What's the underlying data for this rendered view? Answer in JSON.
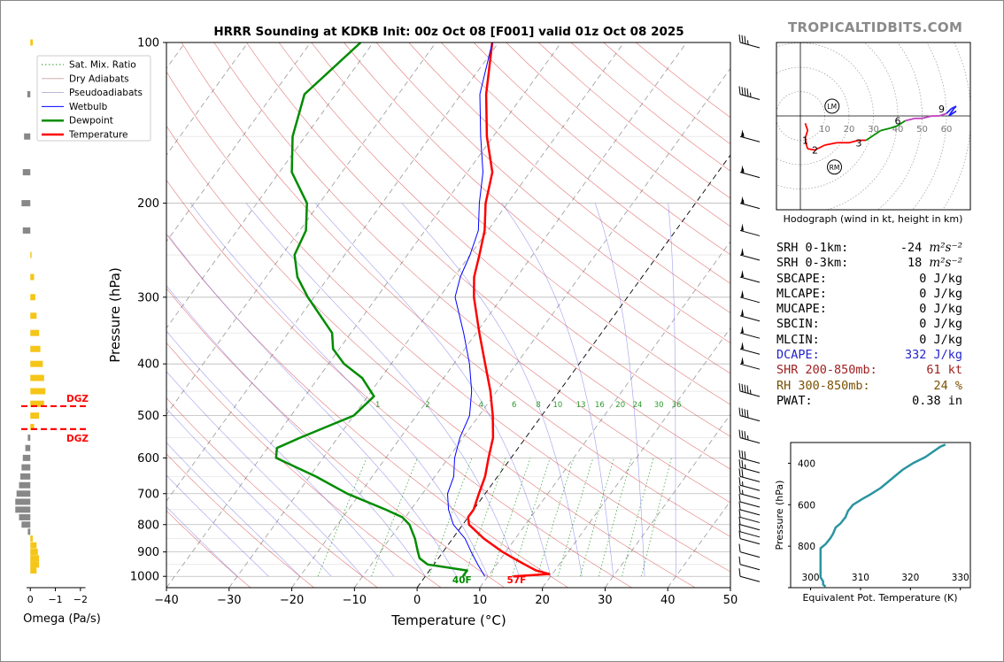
{
  "brand": "TROPICALTIDBITS.COM",
  "title": "HRRR Sounding at KDKB Init: 00z Oct 08 [F001] valid 01z Oct 08 2025",
  "colors": {
    "temperature": "#ff0000",
    "dewpoint": "#008c00",
    "wetbulb": "#0000ff",
    "dry": "#d02020",
    "moist": "#5050e0",
    "mix": "#2a9a2a",
    "theta": "#2a95a0",
    "dgz": "#ff0000",
    "omega_up": "#f5c518",
    "omega_down": "#888888"
  },
  "chart_data": [
    {
      "type": "line",
      "name": "skew-t",
      "xlabel": "Temperature (°C)",
      "ylabel": "Pressure (hPa)",
      "xlim": [
        -40,
        50
      ],
      "ylim": [
        1050,
        100
      ],
      "log_y": true,
      "xticks": [
        "−40",
        "−30",
        "−20",
        "−10",
        "0",
        "10",
        "20",
        "30",
        "40",
        "50"
      ],
      "yticks": [
        "100",
        "200",
        "300",
        "400",
        "500",
        "600",
        "700",
        "800",
        "900",
        "1000"
      ],
      "legend": [
        "Sat. Mix. Ratio",
        "Dry Adiabats",
        "Pseudoadiabats",
        "Wetbulb",
        "Dewpoint",
        "Temperature"
      ],
      "legend_position": "top-left",
      "surface_labels": {
        "temperature": "57F",
        "dewpoint": "40F"
      },
      "mixing_ratio_labels": [
        "1",
        "2",
        "4",
        "6",
        "8",
        "10",
        "13",
        "16",
        "20",
        "24",
        "30",
        "36"
      ],
      "series": [
        {
          "name": "Temperature",
          "points": [
            [
              1000,
              14
            ],
            [
              990,
              19.5
            ],
            [
              975,
              17
            ],
            [
              950,
              14.5
            ],
            [
              925,
              12
            ],
            [
              900,
              9.5
            ],
            [
              850,
              5
            ],
            [
              800,
              1
            ],
            [
              775,
              0
            ],
            [
              750,
              0
            ],
            [
              700,
              -1
            ],
            [
              650,
              -2
            ],
            [
              600,
              -3.6
            ],
            [
              550,
              -5.2
            ],
            [
              500,
              -7.8
            ],
            [
              450,
              -11
            ],
            [
              400,
              -15
            ],
            [
              350,
              -19.5
            ],
            [
              300,
              -24.5
            ],
            [
              275,
              -26.8
            ],
            [
              250,
              -28.5
            ],
            [
              225,
              -30.5
            ],
            [
              200,
              -33.5
            ],
            [
              175,
              -36
            ],
            [
              150,
              -41
            ],
            [
              125,
              -46
            ],
            [
              100,
              -51
            ]
          ]
        },
        {
          "name": "Dewpoint",
          "points": [
            [
              1000,
              6
            ],
            [
              975,
              6
            ],
            [
              950,
              -1
            ],
            [
              925,
              -3
            ],
            [
              900,
              -4
            ],
            [
              850,
              -6
            ],
            [
              800,
              -8.5
            ],
            [
              775,
              -10.5
            ],
            [
              750,
              -14
            ],
            [
              700,
              -22
            ],
            [
              650,
              -29
            ],
            [
              600,
              -37.5
            ],
            [
              575,
              -38.5
            ],
            [
              550,
              -36
            ],
            [
              500,
              -30
            ],
            [
              460,
              -29
            ],
            [
              425,
              -33
            ],
            [
              400,
              -37.5
            ],
            [
              375,
              -41
            ],
            [
              350,
              -43
            ],
            [
              300,
              -51
            ],
            [
              275,
              -55
            ],
            [
              250,
              -58
            ],
            [
              225,
              -59
            ],
            [
              200,
              -62
            ],
            [
              175,
              -68
            ],
            [
              150,
              -72
            ],
            [
              125,
              -75
            ],
            [
              100,
              -72
            ]
          ]
        },
        {
          "name": "Wetbulb",
          "points": [
            [
              1000,
              9.5
            ],
            [
              950,
              7
            ],
            [
              900,
              4.5
            ],
            [
              850,
              2
            ],
            [
              800,
              -1.5
            ],
            [
              750,
              -4
            ],
            [
              700,
              -6
            ],
            [
              650,
              -7
            ],
            [
              600,
              -9
            ],
            [
              550,
              -10.5
            ],
            [
              500,
              -11.5
            ],
            [
              450,
              -14
            ],
            [
              400,
              -17.5
            ],
            [
              350,
              -22
            ],
            [
              300,
              -27.5
            ],
            [
              275,
              -29
            ],
            [
              250,
              -30
            ],
            [
              225,
              -31.5
            ],
            [
              200,
              -34.5
            ],
            [
              175,
              -37.5
            ],
            [
              150,
              -42
            ],
            [
              125,
              -47
            ],
            [
              100,
              -51
            ]
          ]
        }
      ],
      "dgz_labels": [
        "DGZ",
        "DGZ"
      ],
      "dgz_pressures": [
        480,
        530
      ]
    },
    {
      "type": "bar",
      "name": "omega",
      "xlabel": "Omega (Pa/s)",
      "xticks": [
        "0",
        "−1",
        "−2"
      ],
      "xlim": [
        0.15,
        -2.5
      ],
      "values": [
        [
          100,
          -0.1
        ],
        [
          125,
          0.12
        ],
        [
          150,
          0.25
        ],
        [
          175,
          0.3
        ],
        [
          200,
          0.35
        ],
        [
          225,
          0.3
        ],
        [
          250,
          -0.05
        ],
        [
          275,
          -0.15
        ],
        [
          300,
          -0.2
        ],
        [
          325,
          -0.25
        ],
        [
          350,
          -0.35
        ],
        [
          375,
          -0.4
        ],
        [
          400,
          -0.5
        ],
        [
          425,
          -0.55
        ],
        [
          450,
          -0.6
        ],
        [
          475,
          -0.55
        ],
        [
          500,
          -0.35
        ],
        [
          525,
          -0.15
        ],
        [
          550,
          0.1
        ],
        [
          575,
          0.2
        ],
        [
          600,
          0.3
        ],
        [
          625,
          0.35
        ],
        [
          650,
          0.4
        ],
        [
          675,
          0.45
        ],
        [
          700,
          0.55
        ],
        [
          725,
          0.6
        ],
        [
          750,
          0.6
        ],
        [
          775,
          0.45
        ],
        [
          800,
          0.35
        ],
        [
          825,
          0.1
        ],
        [
          850,
          -0.1
        ],
        [
          875,
          -0.25
        ],
        [
          900,
          -0.3
        ],
        [
          925,
          -0.35
        ],
        [
          950,
          -0.35
        ],
        [
          975,
          -0.25
        ]
      ]
    },
    {
      "type": "line",
      "name": "hodograph",
      "xlabel": "Hodograph (wind in kt, height in km)",
      "xticks": [
        "10",
        "20",
        "30",
        "40",
        "50",
        "60"
      ],
      "height_labels": [
        "1",
        "2",
        "3",
        "6",
        "9"
      ],
      "markers": [
        "LM",
        "RM"
      ],
      "points": [
        [
          2,
          -3
        ],
        [
          3,
          -6
        ],
        [
          2,
          -9
        ],
        [
          2.5,
          -12
        ],
        [
          3,
          -13.5
        ],
        [
          6,
          -14
        ],
        [
          10,
          -12
        ],
        [
          15,
          -11
        ],
        [
          20,
          -11
        ],
        [
          24,
          -10
        ],
        [
          27,
          -10
        ],
        [
          30,
          -8
        ],
        [
          33,
          -6
        ],
        [
          37,
          -5
        ],
        [
          40,
          -4
        ],
        [
          43,
          -2
        ],
        [
          47,
          -1
        ],
        [
          50,
          -1
        ],
        [
          54,
          0
        ],
        [
          57,
          0
        ],
        [
          60,
          1
        ],
        [
          62,
          3
        ],
        [
          64,
          4
        ],
        [
          63,
          3
        ],
        [
          61,
          0
        ],
        [
          64,
          2
        ]
      ]
    },
    {
      "type": "line",
      "name": "theta-e",
      "xlabel": "Equivalent Pot. Temperature (K)",
      "ylabel": "Pressure (hPa)",
      "xticks": [
        "300",
        "310",
        "320",
        "330"
      ],
      "yticks": [
        "400",
        "600",
        "800"
      ],
      "xlim": [
        296,
        332
      ],
      "ylim": [
        1000,
        300
      ],
      "points": [
        [
          995,
          303
        ],
        [
          985,
          302.5
        ],
        [
          970,
          302.5
        ],
        [
          950,
          302
        ],
        [
          900,
          302
        ],
        [
          850,
          302
        ],
        [
          810,
          302
        ],
        [
          790,
          303
        ],
        [
          760,
          304
        ],
        [
          740,
          304.5
        ],
        [
          710,
          305
        ],
        [
          690,
          306
        ],
        [
          660,
          307
        ],
        [
          630,
          307.5
        ],
        [
          600,
          308.5
        ],
        [
          570,
          310.5
        ],
        [
          550,
          312
        ],
        [
          520,
          314
        ],
        [
          490,
          315.5
        ],
        [
          460,
          317
        ],
        [
          430,
          318.5
        ],
        [
          400,
          320.5
        ],
        [
          370,
          323
        ],
        [
          345,
          324.5
        ],
        [
          320,
          326
        ],
        [
          310,
          327
        ]
      ]
    },
    {
      "type": "table",
      "name": "indices",
      "rows": [
        {
          "label": "SRH 0-1km:",
          "value": "-24",
          "unit": "m²s⁻²",
          "color": "#000000"
        },
        {
          "label": "SRH 0-3km:",
          "value": "18",
          "unit": "m²s⁻²",
          "color": "#000000"
        },
        {
          "label": "SBCAPE:",
          "value": "0 J/kg",
          "unit": "",
          "color": "#000000"
        },
        {
          "label": "MLCAPE:",
          "value": "0 J/kg",
          "unit": "",
          "color": "#000000"
        },
        {
          "label": "MUCAPE:",
          "value": "0 J/kg",
          "unit": "",
          "color": "#000000"
        },
        {
          "label": "SBCIN:",
          "value": "0 J/kg",
          "unit": "",
          "color": "#000000"
        },
        {
          "label": "MLCIN:",
          "value": "0 J/kg",
          "unit": "",
          "color": "#000000"
        },
        {
          "label": "DCAPE:",
          "value": "332 J/kg",
          "unit": "",
          "color": "#2222cc"
        },
        {
          "label": "SHR 200-850mb:",
          "value": "61 kt",
          "unit": "",
          "color": "#a02020"
        },
        {
          "label": "RH 300-850mb:",
          "value": "24 %",
          "unit": "",
          "color": "#7a5000"
        },
        {
          "label": "PWAT:",
          "value": "0.38 in",
          "unit": "",
          "color": "#000000"
        }
      ]
    }
  ],
  "wind_barbs": {
    "pressures": [
      100,
      125,
      150,
      175,
      200,
      225,
      250,
      275,
      300,
      325,
      350,
      375,
      400,
      450,
      500,
      550,
      600,
      625,
      650,
      675,
      700,
      725,
      750,
      775,
      800,
      825,
      850,
      900,
      950,
      1000
    ],
    "speeds_kt": [
      35,
      45,
      55,
      55,
      55,
      50,
      50,
      50,
      50,
      50,
      50,
      50,
      50,
      45,
      40,
      35,
      30,
      25,
      20,
      15,
      15,
      10,
      10,
      10,
      10,
      10,
      10,
      10,
      10,
      10
    ]
  }
}
